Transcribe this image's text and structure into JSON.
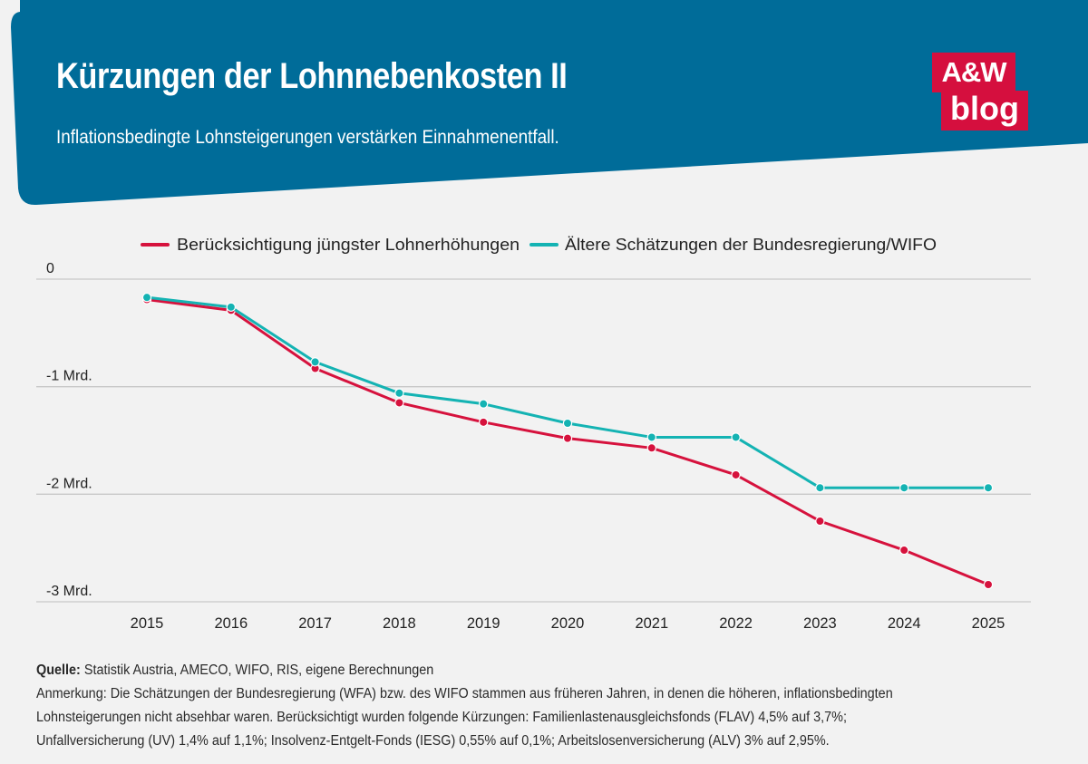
{
  "header": {
    "title": "Kürzungen der Lohnnebenkosten II",
    "subtitle": "Inflationsbedingte Lohnsteigerungen verstärken Einnahmenentfall.",
    "banner_color": "#006c99",
    "logo": {
      "line1": "A&W",
      "line2": "blog",
      "color": "#d50f3e"
    }
  },
  "chart_data": {
    "type": "line",
    "x": [
      "2015",
      "2016",
      "2017",
      "2018",
      "2019",
      "2020",
      "2021",
      "2022",
      "2023",
      "2024",
      "2025"
    ],
    "series": [
      {
        "name": "Berücksichtigung jüngster Lohnerhöhungen",
        "color": "#d6123d",
        "values": [
          -0.19,
          -0.29,
          -0.83,
          -1.15,
          -1.33,
          -1.48,
          -1.57,
          -1.82,
          -2.25,
          -2.52,
          -2.84
        ]
      },
      {
        "name": "Ältere Schätzungen der Bundesregierung/WIFO",
        "color": "#14b3b3",
        "values": [
          -0.17,
          -0.26,
          -0.77,
          -1.06,
          -1.16,
          -1.34,
          -1.47,
          -1.47,
          -1.94,
          -1.94,
          -1.94
        ]
      }
    ],
    "yticks": [
      0,
      -1,
      -2,
      -3
    ],
    "ytick_labels": [
      "0",
      "-1 Mrd.",
      "-2 Mrd.",
      "-3 Mrd."
    ],
    "ylim": [
      -3,
      0
    ],
    "grid": true,
    "legend_position": "top-center",
    "title": "",
    "xlabel": "",
    "ylabel": ""
  },
  "footer": {
    "source_label": "Quelle:",
    "source_text": " Statistik Austria, AMECO, WIFO, RIS, eigene Berechnungen",
    "note_lines": [
      "Anmerkung: Die Schätzungen der Bundesregierung (WFA) bzw. des WIFO stammen aus früheren Jahren, in denen die höheren, inflationsbedingten",
      "Lohnsteigerungen nicht absehbar waren. Berücksichtigt wurden folgende Kürzungen: Familienlastenausgleichsfonds (FLAV) 4,5% auf 3,7%;",
      "Unfallversicherung (UV) 1,4% auf 1,1%; Insolvenz-Entgelt-Fonds (IESG) 0,55% auf 0,1%; Arbeitslosenversicherung (ALV) 3% auf 2,95%."
    ]
  }
}
